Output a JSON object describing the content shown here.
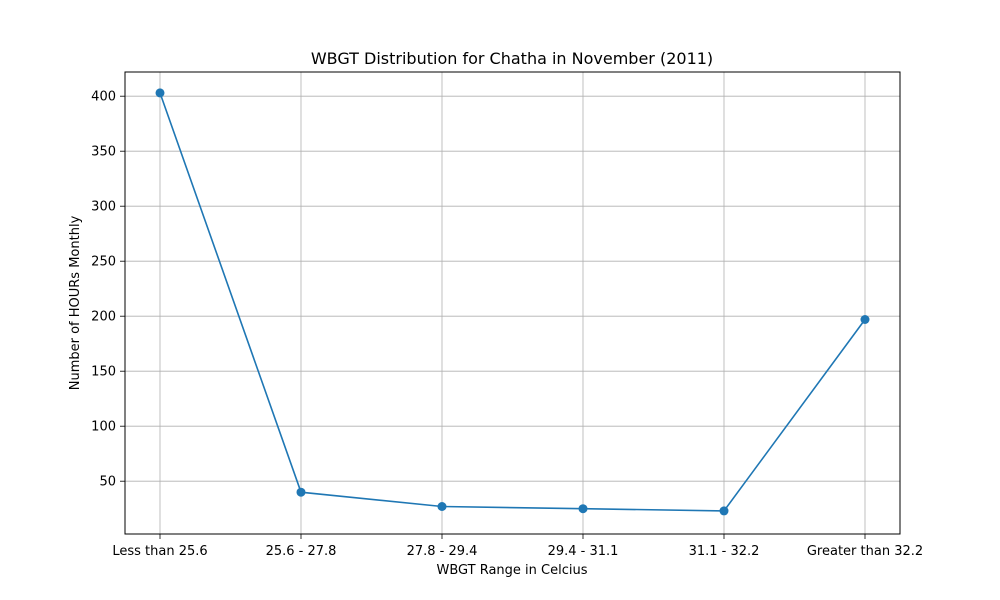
{
  "chart_data": {
    "type": "line",
    "title": "WBGT Distribution for Chatha in November (2011)",
    "xlabel": "WBGT Range in Celcius",
    "ylabel": "Number of HOURs Monthly",
    "categories": [
      "Less than 25.6",
      "25.6 - 27.8",
      "27.8 - 29.4",
      "29.4 - 31.1",
      "31.1 - 32.2",
      "Greater than 32.2"
    ],
    "series": [
      {
        "values": [
          403,
          40,
          27,
          25,
          23,
          197
        ],
        "color": "#1f77b4",
        "marker": "circle"
      }
    ],
    "yticks": [
      50,
      100,
      150,
      200,
      250,
      300,
      350,
      400
    ],
    "ylim": [
      2,
      422
    ],
    "grid": true,
    "legend": "none"
  }
}
